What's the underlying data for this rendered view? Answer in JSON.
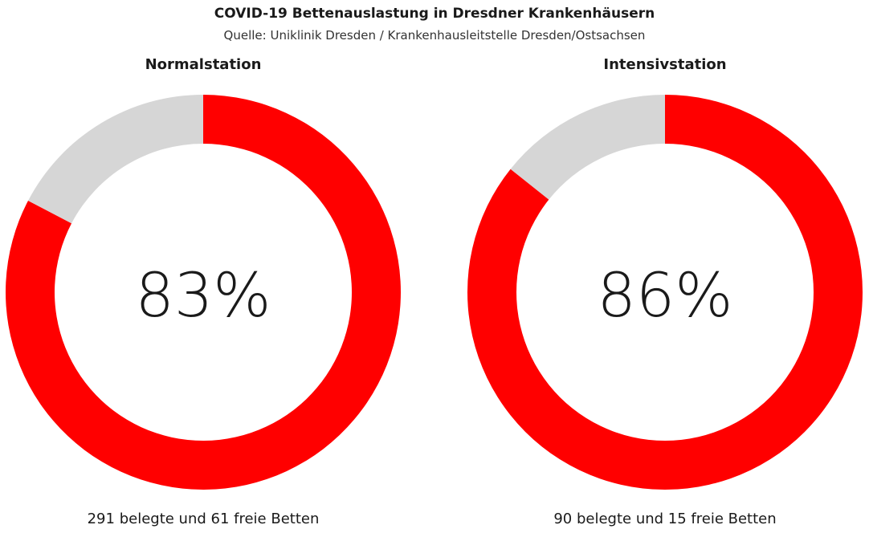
{
  "title": "COVID-19 Bettenauslastung in Dresdner Krankenhäusern",
  "subtitle": "Quelle: Uniklinik Dresden / Krankenhausleitstelle Dresden/Ostsachsen",
  "colors": {
    "occupied": "#ff0000",
    "free": "#d6d6d6",
    "text": "#1a1a1a"
  },
  "chart_data": [
    {
      "type": "pie",
      "title": "Normalstation",
      "labels": [
        "belegt",
        "frei"
      ],
      "values": [
        291,
        61
      ],
      "center_label": "83%",
      "caption": "291 belegte und 61 freie Betten"
    },
    {
      "type": "pie",
      "title": "Intensivstation",
      "labels": [
        "belegt",
        "frei"
      ],
      "values": [
        90,
        15
      ],
      "center_label": "86%",
      "caption": "90 belegte und 15 freie Betten"
    }
  ]
}
